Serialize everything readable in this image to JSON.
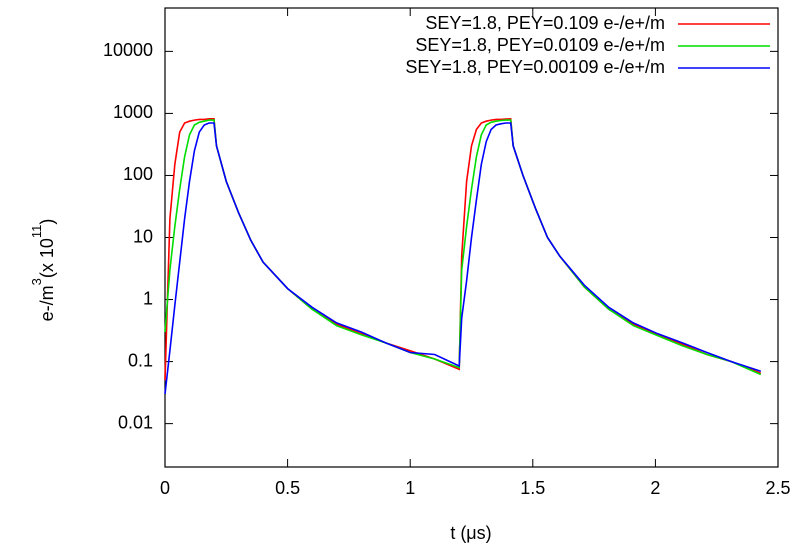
{
  "chart_data": {
    "type": "line",
    "xlabel": "t (μs)",
    "ylabel": [
      "e-/m",
      "3",
      "(x 10",
      "11",
      ")"
    ],
    "log_y": true,
    "legend": "upper right",
    "xlim": [
      0,
      2.5
    ],
    "xticks": [
      0,
      0.5,
      1,
      1.5,
      2,
      2.5
    ],
    "ylim": [
      0.002,
      50000
    ],
    "yticks": [
      0.01,
      0.1,
      1,
      10,
      100,
      1000,
      10000
    ],
    "x": [
      0,
      0.02,
      0.04,
      0.06,
      0.08,
      0.1,
      0.12,
      0.14,
      0.16,
      0.18,
      0.2,
      0.21,
      0.25,
      0.3,
      0.35,
      0.4,
      0.5,
      0.6,
      0.7,
      0.8,
      0.9,
      1.0,
      1.1,
      1.2,
      1.21,
      1.23,
      1.25,
      1.27,
      1.29,
      1.31,
      1.33,
      1.35,
      1.37,
      1.39,
      1.41,
      1.42,
      1.46,
      1.51,
      1.56,
      1.61,
      1.71,
      1.81,
      1.91,
      2.01,
      2.11,
      2.21,
      2.31,
      2.43
    ],
    "series": [
      {
        "name": "SEY=1.8, PEY=0.109 e-/e+/m",
        "color": "#ff0000",
        "values": [
          0.05,
          20,
          150,
          500,
          700,
          750,
          780,
          800,
          800,
          820,
          820,
          300,
          80,
          25,
          9,
          4,
          1.5,
          0.7,
          0.4,
          0.28,
          0.2,
          0.15,
          0.11,
          0.075,
          5,
          80,
          300,
          550,
          700,
          750,
          780,
          800,
          800,
          810,
          820,
          300,
          100,
          30,
          10,
          5,
          1.6,
          0.7,
          0.4,
          0.27,
          0.19,
          0.13,
          0.1,
          0.065
        ]
      },
      {
        "name": "SEY=1.8, PEY=0.0109 e-/e+/m",
        "color": "#00dd00",
        "values": [
          0.3,
          3,
          15,
          60,
          200,
          450,
          650,
          720,
          750,
          780,
          780,
          300,
          80,
          25,
          9,
          4,
          1.5,
          0.7,
          0.38,
          0.27,
          0.2,
          0.14,
          0.11,
          0.08,
          3,
          15,
          60,
          200,
          450,
          650,
          720,
          750,
          770,
          780,
          780,
          300,
          100,
          30,
          10,
          5,
          1.6,
          0.7,
          0.38,
          0.26,
          0.18,
          0.13,
          0.1,
          0.062
        ]
      },
      {
        "name": "SEY=1.8, PEY=0.00109 e-/e+/m",
        "color": "#0000ff",
        "values": [
          0.03,
          0.15,
          0.8,
          4,
          20,
          80,
          250,
          500,
          650,
          700,
          700,
          300,
          80,
          25,
          9,
          4,
          1.5,
          0.75,
          0.42,
          0.3,
          0.2,
          0.14,
          0.13,
          0.085,
          0.5,
          2,
          10,
          40,
          150,
          350,
          550,
          650,
          680,
          700,
          700,
          300,
          100,
          30,
          10,
          5,
          1.7,
          0.75,
          0.42,
          0.28,
          0.2,
          0.14,
          0.1,
          0.07
        ]
      }
    ]
  }
}
